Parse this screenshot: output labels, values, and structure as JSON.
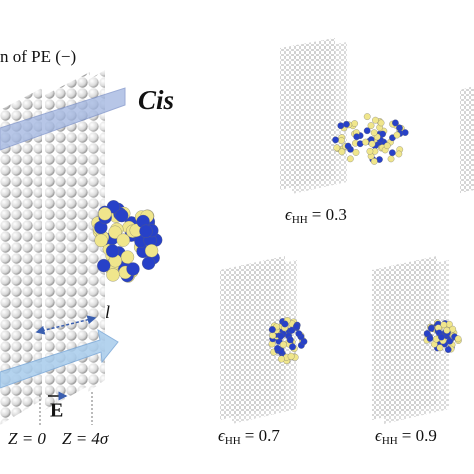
{
  "header": {
    "partial_title": "n of PE (−)",
    "side_label": "Cis"
  },
  "left_panel": {
    "length_label": "l",
    "field_label": "E",
    "z_labels": [
      "Z = 0",
      "Z = 4σ"
    ]
  },
  "panels": [
    {
      "symbol": "ϵ",
      "subscript": "HH",
      "value": "= 0.3"
    },
    {
      "symbol": "ϵ",
      "subscript": "HH",
      "value": "= 0.7"
    },
    {
      "symbol": "ϵ",
      "subscript": "HH",
      "value": "= 0.9"
    }
  ]
}
